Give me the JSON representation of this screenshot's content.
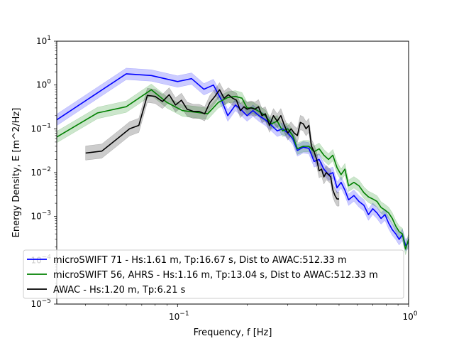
{
  "chart_data": {
    "type": "line",
    "xlabel": "Frequency, f [Hz]",
    "ylabel": "Energy Density, E [m^2/Hz]",
    "xscale": "log",
    "yscale": "log",
    "xlim": [
      0.03,
      1.0
    ],
    "ylim": [
      1e-05,
      10
    ],
    "x_ticks": [
      {
        "value": 0.1,
        "base": "10",
        "exp": "−1"
      },
      {
        "value": 1.0,
        "base": "10",
        "exp": "0"
      }
    ],
    "y_ticks": [
      {
        "value": 1e-05,
        "base": "10",
        "exp": "−5"
      },
      {
        "value": 0.0001,
        "base": "10",
        "exp": "−4"
      },
      {
        "value": 0.001,
        "base": "10",
        "exp": "−3"
      },
      {
        "value": 0.01,
        "base": "10",
        "exp": "−2"
      },
      {
        "value": 0.1,
        "base": "10",
        "exp": "−1"
      },
      {
        "value": 1,
        "base": "10",
        "exp": "0"
      },
      {
        "value": 10,
        "base": "10",
        "exp": "1"
      }
    ],
    "grid": false,
    "legend_position": "lower-left",
    "series": [
      {
        "name": "microSWIFT 71 - Hs:1.61 m, Tp:16.67 s, Dist to AWAC:512.33 m",
        "color": "#0000ff",
        "band": true,
        "x": [
          0.03,
          0.06,
          0.077,
          0.1,
          0.115,
          0.13,
          0.143,
          0.155,
          0.165,
          0.178,
          0.19,
          0.2,
          0.212,
          0.225,
          0.24,
          0.255,
          0.27,
          0.285,
          0.3,
          0.315,
          0.33,
          0.35,
          0.37,
          0.39,
          0.41,
          0.43,
          0.45,
          0.47,
          0.49,
          0.51,
          0.53,
          0.55,
          0.58,
          0.61,
          0.64,
          0.67,
          0.7,
          0.73,
          0.76,
          0.79,
          0.82,
          0.85,
          0.88,
          0.91,
          0.94,
          0.97,
          1.0
        ],
        "y": [
          0.16,
          1.8,
          1.65,
          1.2,
          1.4,
          0.8,
          1.0,
          0.45,
          0.2,
          0.35,
          0.26,
          0.2,
          0.26,
          0.2,
          0.16,
          0.12,
          0.09,
          0.1,
          0.08,
          0.06,
          0.032,
          0.038,
          0.036,
          0.018,
          0.02,
          0.012,
          0.009,
          0.01,
          0.0045,
          0.006,
          0.004,
          0.0024,
          0.003,
          0.0022,
          0.0018,
          0.0011,
          0.0015,
          0.0012,
          0.0009,
          0.0011,
          0.0007,
          0.0005,
          0.0004,
          0.0003,
          0.00038,
          0.00022,
          0.00025
        ],
        "band_factor": 1.35
      },
      {
        "name": "microSWIFT 56, AHRS - Hs:1.16 m, Tp:13.04 s, Dist to AWAC:512.33 m",
        "color": "#008000",
        "band": true,
        "x": [
          0.03,
          0.045,
          0.06,
          0.077,
          0.09,
          0.105,
          0.12,
          0.135,
          0.15,
          0.165,
          0.178,
          0.19,
          0.2,
          0.212,
          0.225,
          0.24,
          0.255,
          0.27,
          0.285,
          0.3,
          0.315,
          0.33,
          0.35,
          0.37,
          0.39,
          0.41,
          0.43,
          0.45,
          0.47,
          0.49,
          0.51,
          0.53,
          0.55,
          0.58,
          0.61,
          0.64,
          0.67,
          0.7,
          0.73,
          0.76,
          0.79,
          0.82,
          0.85,
          0.88,
          0.91,
          0.94,
          0.97,
          1.0
        ],
        "y": [
          0.065,
          0.23,
          0.32,
          0.78,
          0.4,
          0.26,
          0.24,
          0.22,
          0.4,
          0.52,
          0.55,
          0.5,
          0.3,
          0.3,
          0.25,
          0.2,
          0.13,
          0.15,
          0.09,
          0.1,
          0.07,
          0.035,
          0.04,
          0.04,
          0.03,
          0.035,
          0.025,
          0.02,
          0.025,
          0.013,
          0.009,
          0.012,
          0.005,
          0.006,
          0.005,
          0.0035,
          0.0028,
          0.0025,
          0.0022,
          0.0016,
          0.0014,
          0.0012,
          0.0009,
          0.0006,
          0.00045,
          0.0004,
          0.00018,
          0.0003
        ],
        "band_factor": 1.35
      },
      {
        "name": "AWAC - Hs:1.20 m, Tp:6.21 s",
        "color": "#000000",
        "band": true,
        "x": [
          0.04,
          0.047,
          0.055,
          0.062,
          0.068,
          0.074,
          0.08,
          0.086,
          0.092,
          0.098,
          0.104,
          0.11,
          0.117,
          0.124,
          0.131,
          0.138,
          0.145,
          0.152,
          0.159,
          0.166,
          0.173,
          0.18,
          0.187,
          0.194,
          0.2,
          0.208,
          0.216,
          0.224,
          0.232,
          0.24,
          0.25,
          0.26,
          0.27,
          0.28,
          0.29,
          0.3,
          0.31,
          0.32,
          0.33,
          0.34,
          0.35,
          0.36,
          0.37,
          0.38,
          0.39,
          0.4,
          0.41,
          0.42,
          0.43,
          0.44,
          0.45,
          0.46,
          0.47,
          0.48,
          0.49,
          0.5
        ],
        "y": [
          0.028,
          0.031,
          0.06,
          0.1,
          0.12,
          0.58,
          0.55,
          0.42,
          0.6,
          0.35,
          0.45,
          0.28,
          0.25,
          0.25,
          0.22,
          0.4,
          0.55,
          0.78,
          0.5,
          0.6,
          0.5,
          0.45,
          0.26,
          0.32,
          0.28,
          0.3,
          0.28,
          0.32,
          0.2,
          0.22,
          0.12,
          0.2,
          0.15,
          0.2,
          0.12,
          0.08,
          0.1,
          0.08,
          0.07,
          0.14,
          0.13,
          0.1,
          0.12,
          0.04,
          0.03,
          0.02,
          0.011,
          0.012,
          0.008,
          0.01,
          0.009,
          0.008,
          0.004,
          0.003,
          0.0025,
          0.0025
        ],
        "band_factor": 1.45
      }
    ]
  }
}
